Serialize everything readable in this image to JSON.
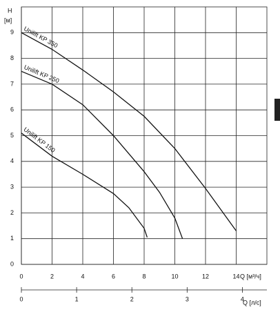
{
  "chart_data": {
    "type": "line",
    "ylabel": "H",
    "yunit": "[м]",
    "xlabel": "Q [м³/ч]",
    "x2label": "Q [л/с]",
    "xlim": [
      0,
      16
    ],
    "xticks": [
      0,
      2,
      4,
      6,
      8,
      10,
      12,
      14
    ],
    "ylim": [
      0,
      10
    ],
    "yticks": [
      0,
      1,
      2,
      3,
      4,
      5,
      6,
      7,
      8,
      9
    ],
    "x2lim": [
      0,
      4.444
    ],
    "x2ticks": [
      0,
      1,
      2,
      3,
      4
    ],
    "grid": true,
    "series": [
      {
        "name": "Unilift KP 350",
        "color": "#111111",
        "x": [
          0,
          2,
          4,
          6,
          8,
          10,
          12,
          14
        ],
        "values": [
          9,
          8.35,
          7.55,
          6.7,
          5.75,
          4.5,
          2.95,
          1.3
        ]
      },
      {
        "name": "Unilift KP 250",
        "color": "#111111",
        "x": [
          0,
          2,
          4,
          6,
          8,
          9,
          10,
          10.5
        ],
        "values": [
          7.5,
          7.0,
          6.2,
          5.0,
          3.6,
          2.8,
          1.8,
          1.0
        ]
      },
      {
        "name": "Unilift KP 150",
        "color": "#111111",
        "x": [
          0,
          2,
          4,
          6,
          7,
          8,
          8.2
        ],
        "values": [
          5.1,
          4.2,
          3.5,
          2.75,
          2.2,
          1.4,
          1.05
        ]
      }
    ]
  }
}
